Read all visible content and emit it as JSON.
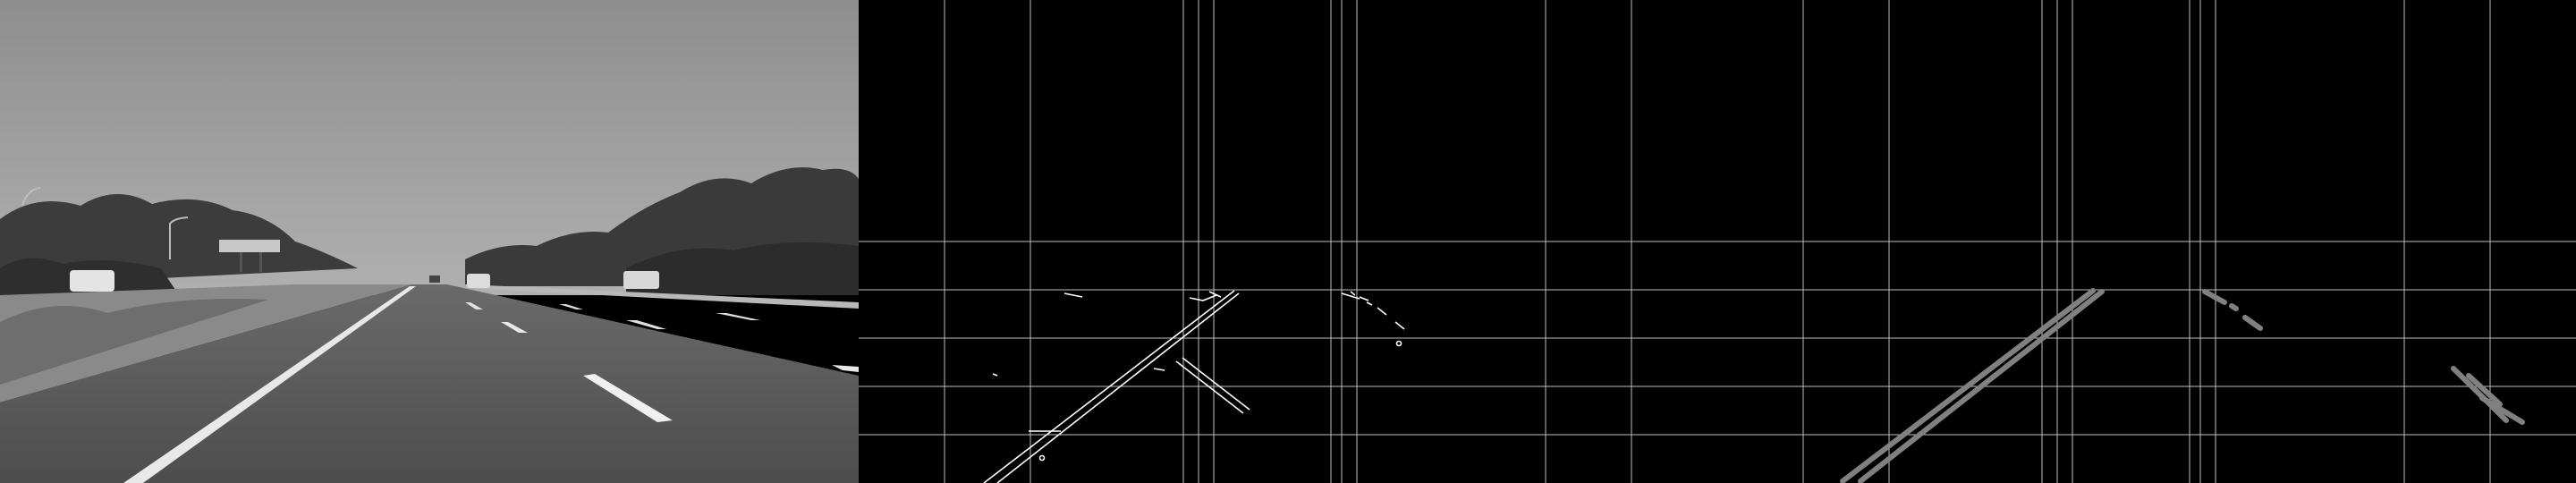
{
  "panels": [
    {
      "name": "grayscale-road-photo"
    },
    {
      "name": "canny-edges-with-grid"
    },
    {
      "name": "hough-lines-with-grid"
    }
  ],
  "colors": {
    "background": "#000000",
    "grid": "#bfbfbf",
    "edge": "#ffffff",
    "hough_line": "#808080",
    "sky": "#9c9c9c",
    "road": "#5a5a5a",
    "lane_marking": "#eeeeee"
  }
}
